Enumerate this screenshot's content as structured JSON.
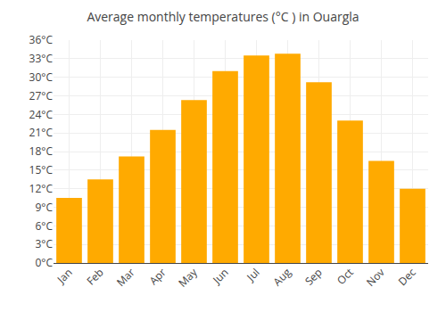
{
  "chart_data": {
    "type": "bar",
    "title": "Average monthly temperatures (°C ) in Ouargla",
    "categories": [
      "Jan",
      "Feb",
      "Mar",
      "Apr",
      "May",
      "Jun",
      "Jul",
      "Aug",
      "Sep",
      "Oct",
      "Nov",
      "Dec"
    ],
    "values": [
      10.5,
      13.5,
      17.2,
      21.5,
      26.3,
      31.0,
      33.5,
      33.8,
      29.2,
      23.0,
      16.5,
      12.0
    ],
    "color": "#FFAA00",
    "ylim": [
      0,
      36
    ],
    "yticks": [
      {
        "value": 0,
        "label": "0°C"
      },
      {
        "value": 3,
        "label": "3°C"
      },
      {
        "value": 6,
        "label": "6°C"
      },
      {
        "value": 9,
        "label": "9°C"
      },
      {
        "value": 12,
        "label": "12°C"
      },
      {
        "value": 15,
        "label": "15°C"
      },
      {
        "value": 18,
        "label": "18°C"
      },
      {
        "value": 21,
        "label": "21°C"
      },
      {
        "value": 24,
        "label": "24°C"
      },
      {
        "value": 27,
        "label": "27°C"
      },
      {
        "value": 30,
        "label": "30°C"
      },
      {
        "value": 33,
        "label": "33°C"
      },
      {
        "value": 36,
        "label": "36°C"
      }
    ],
    "grid": true
  }
}
